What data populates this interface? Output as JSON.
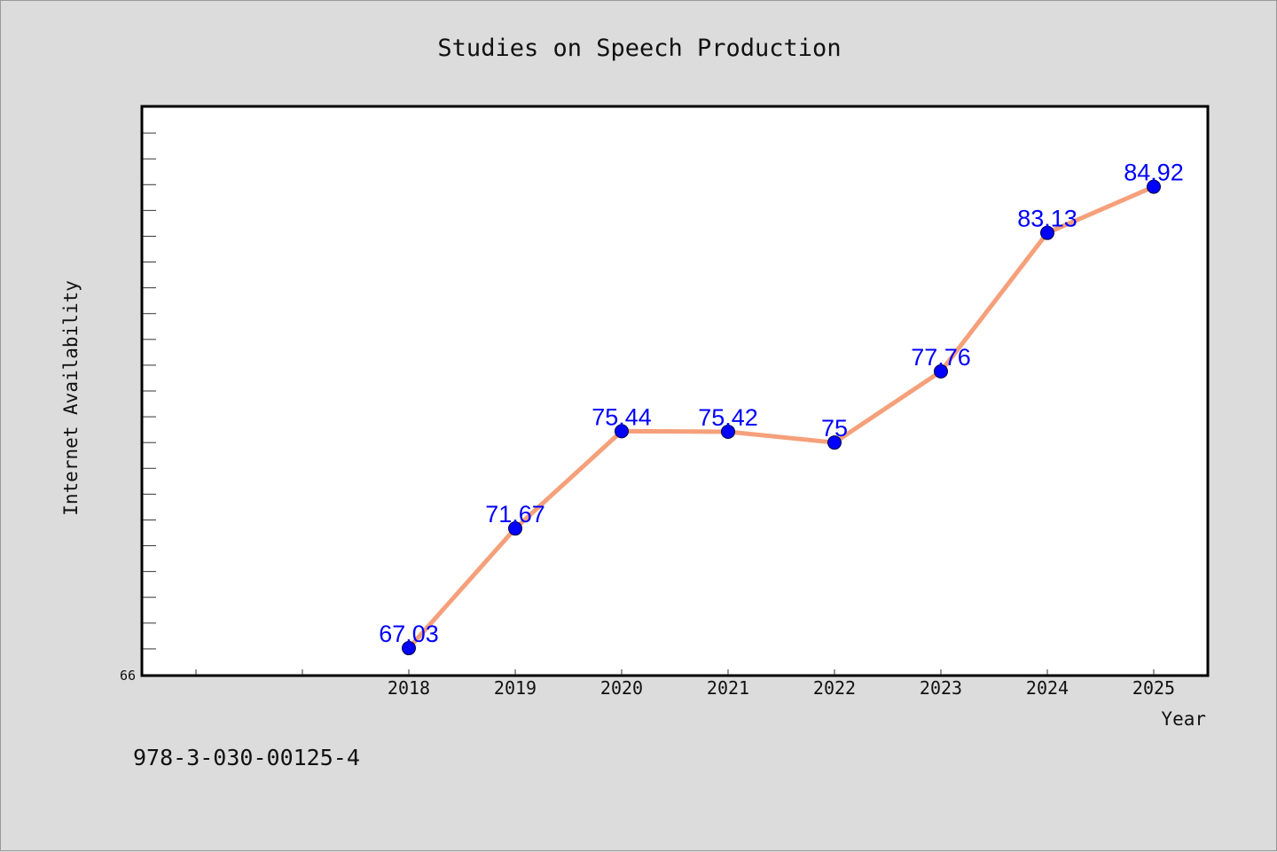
{
  "chart_data": {
    "type": "line",
    "title": "Studies on Speech Production",
    "xlabel": "Year",
    "ylabel": "Internet Availability",
    "categories": [
      "2018",
      "2019",
      "2020",
      "2021",
      "2022",
      "2023",
      "2024",
      "2025"
    ],
    "series": [
      {
        "values": [
          67.03,
          71.67,
          75.44,
          75.42,
          75,
          77.76,
          83.13,
          84.92
        ],
        "data_labels": [
          "67.03",
          "71.67",
          "75.44",
          "75.42",
          "75",
          "77.76",
          "83.13",
          "84.92"
        ]
      }
    ],
    "ylim": [
      66,
      88
    ],
    "y_tick_labels": [
      "66"
    ],
    "grid": false,
    "legend": "none",
    "colors": {
      "line": "#f5a07a",
      "marker": "#0000ff",
      "label": "#0000ff",
      "plot_background": "#ffffff",
      "page_background": "#dcdcdc"
    }
  },
  "footer": {
    "isbn": "978-3-030-00125-4"
  }
}
